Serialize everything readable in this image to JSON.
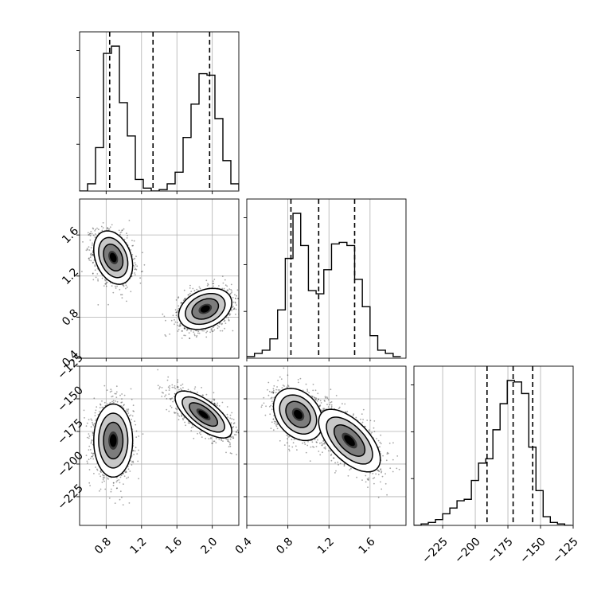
{
  "chart_data": {
    "type": "corner",
    "params": [
      {
        "id": "p0",
        "range": [
          0.5,
          2.3
        ],
        "ticks": [
          0.8,
          1.2,
          1.6,
          2.0
        ]
      },
      {
        "id": "p1",
        "range": [
          0.4,
          1.95
        ],
        "ticks": [
          0.4,
          0.8,
          1.2,
          1.6
        ]
      },
      {
        "id": "p2",
        "range": [
          -247,
          -125
        ],
        "ticks": [
          -225,
          -200,
          -175,
          -150,
          -125
        ]
      }
    ],
    "tick_labels": {
      "p0": [
        "0.8",
        "1.2",
        "1.6",
        "2.0"
      ],
      "p1": [
        "0.4",
        "0.8",
        "1.2",
        "1.6"
      ],
      "p2": [
        "−225",
        "−200",
        "−175",
        "−150",
        "−125"
      ]
    },
    "histograms": [
      {
        "param": "p0",
        "edges_start": 0.5,
        "bin_width": 0.09,
        "counts": [
          0,
          5,
          30,
          95,
          100,
          61,
          38,
          8,
          2,
          0,
          1,
          5,
          13,
          37,
          60,
          81,
          80,
          50,
          21,
          5,
          1
        ],
        "quantiles": [
          0.84,
          1.33,
          1.97
        ]
      },
      {
        "param": "p1",
        "edges_start": 0.4,
        "bin_width": 0.075,
        "counts": [
          1,
          3,
          5,
          12,
          30,
          62,
          90,
          70,
          42,
          40,
          55,
          71,
          72,
          70,
          49,
          32,
          14,
          5,
          3,
          1
        ],
        "quantiles": [
          0.83,
          1.1,
          1.45
        ]
      },
      {
        "param": "p2",
        "edges_start": -247,
        "bin_width": 5.5,
        "counts": [
          0,
          1,
          2,
          4,
          8,
          12,
          17,
          18,
          31,
          43,
          46,
          66,
          84,
          100,
          99,
          91,
          54,
          24,
          6,
          2,
          1,
          0
        ],
        "quantiles": [
          -191,
          -171,
          -156
        ]
      }
    ],
    "scatter_panels": [
      {
        "x": "p0",
        "y": "p1",
        "modes": [
          {
            "cx": 0.88,
            "cy": 1.38,
            "sx": 0.11,
            "sy": 0.13,
            "rho": -0.3,
            "n": 1300
          },
          {
            "cx": 1.92,
            "cy": 0.88,
            "sx": 0.15,
            "sy": 0.1,
            "rho": 0.3,
            "n": 1300
          }
        ]
      },
      {
        "x": "p0",
        "y": "p2",
        "modes": [
          {
            "cx": 0.88,
            "cy": -182,
            "sx": 0.11,
            "sy": 14,
            "rho": 0.0,
            "n": 1300
          },
          {
            "cx": 1.9,
            "cy": -162,
            "sx": 0.16,
            "sy": 9,
            "rho": -0.7,
            "n": 1300
          }
        ]
      },
      {
        "x": "p1",
        "y": "p2",
        "modes": [
          {
            "cx": 0.9,
            "cy": -162,
            "sx": 0.12,
            "sy": 10,
            "rho": -0.3,
            "n": 1300
          },
          {
            "cx": 1.4,
            "cy": -182,
            "sx": 0.15,
            "sy": 12,
            "rho": -0.6,
            "n": 1300
          }
        ]
      }
    ],
    "contour_levels": [
      "0.5",
      "1.0",
      "1.5",
      "2.0"
    ],
    "grid": true
  }
}
